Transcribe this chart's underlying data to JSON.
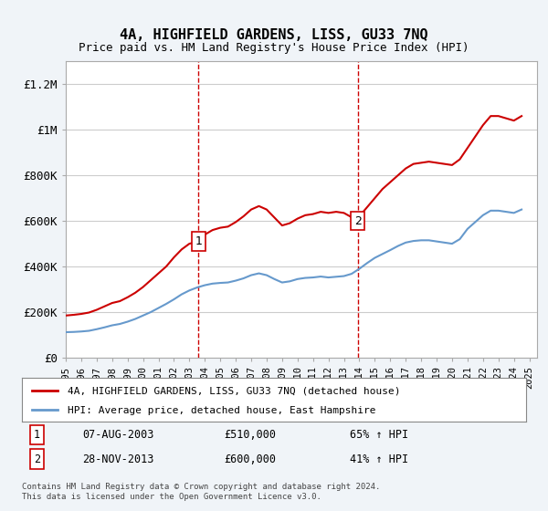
{
  "title": "4A, HIGHFIELD GARDENS, LISS, GU33 7NQ",
  "subtitle": "Price paid vs. HM Land Registry's House Price Index (HPI)",
  "ylabel_ticks": [
    "£0",
    "£200K",
    "£400K",
    "£600K",
    "£800K",
    "£1M",
    "£1.2M"
  ],
  "ytick_values": [
    0,
    200000,
    400000,
    600000,
    800000,
    1000000,
    1200000
  ],
  "ylim": [
    0,
    1300000
  ],
  "xlim_start": 1995.0,
  "xlim_end": 2025.5,
  "legend_line1": "4A, HIGHFIELD GARDENS, LISS, GU33 7NQ (detached house)",
  "legend_line2": "HPI: Average price, detached house, East Hampshire",
  "sale1_label": "1",
  "sale1_date": "07-AUG-2003",
  "sale1_price": "£510,000",
  "sale1_hpi": "65% ↑ HPI",
  "sale1_x": 2003.6,
  "sale1_y": 510000,
  "sale2_label": "2",
  "sale2_date": "28-NOV-2013",
  "sale2_price": "£600,000",
  "sale2_hpi": "41% ↑ HPI",
  "sale2_x": 2013.9,
  "sale2_y": 600000,
  "vline1_x": 2003.6,
  "vline2_x": 2013.9,
  "line_color_red": "#cc0000",
  "line_color_blue": "#6699cc",
  "vline_color": "#cc0000",
  "background_color": "#f0f4f8",
  "plot_bg_color": "#ffffff",
  "footer_text": "Contains HM Land Registry data © Crown copyright and database right 2024.\nThis data is licensed under the Open Government Licence v3.0.",
  "red_line_data_x": [
    1995.0,
    1995.5,
    1996.0,
    1996.5,
    1997.0,
    1997.5,
    1998.0,
    1998.5,
    1999.0,
    1999.5,
    2000.0,
    2000.5,
    2001.0,
    2001.5,
    2002.0,
    2002.5,
    2003.0,
    2003.58,
    2004.0,
    2004.5,
    2005.0,
    2005.5,
    2006.0,
    2006.5,
    2007.0,
    2007.5,
    2008.0,
    2008.5,
    2009.0,
    2009.5,
    2010.0,
    2010.5,
    2011.0,
    2011.5,
    2012.0,
    2012.5,
    2013.0,
    2013.92,
    2014.0,
    2014.5,
    2015.0,
    2015.5,
    2016.0,
    2016.5,
    2017.0,
    2017.5,
    2018.0,
    2018.5,
    2019.0,
    2019.5,
    2020.0,
    2020.5,
    2021.0,
    2021.5,
    2022.0,
    2022.5,
    2023.0,
    2023.5,
    2024.0,
    2024.5
  ],
  "red_line_data_y": [
    185000,
    188000,
    192000,
    198000,
    210000,
    225000,
    240000,
    248000,
    265000,
    285000,
    310000,
    340000,
    370000,
    400000,
    440000,
    475000,
    500000,
    510000,
    540000,
    560000,
    570000,
    575000,
    595000,
    620000,
    650000,
    665000,
    650000,
    615000,
    580000,
    590000,
    610000,
    625000,
    630000,
    640000,
    635000,
    640000,
    635000,
    600000,
    620000,
    660000,
    700000,
    740000,
    770000,
    800000,
    830000,
    850000,
    855000,
    860000,
    855000,
    850000,
    845000,
    870000,
    920000,
    970000,
    1020000,
    1060000,
    1060000,
    1050000,
    1040000,
    1060000
  ],
  "blue_line_data_x": [
    1995.0,
    1995.5,
    1996.0,
    1996.5,
    1997.0,
    1997.5,
    1998.0,
    1998.5,
    1999.0,
    1999.5,
    2000.0,
    2000.5,
    2001.0,
    2001.5,
    2002.0,
    2002.5,
    2003.0,
    2003.5,
    2004.0,
    2004.5,
    2005.0,
    2005.5,
    2006.0,
    2006.5,
    2007.0,
    2007.5,
    2008.0,
    2008.5,
    2009.0,
    2009.5,
    2010.0,
    2010.5,
    2011.0,
    2011.5,
    2012.0,
    2012.5,
    2013.0,
    2013.5,
    2014.0,
    2014.5,
    2015.0,
    2015.5,
    2016.0,
    2016.5,
    2017.0,
    2017.5,
    2018.0,
    2018.5,
    2019.0,
    2019.5,
    2020.0,
    2020.5,
    2021.0,
    2021.5,
    2022.0,
    2022.5,
    2023.0,
    2023.5,
    2024.0,
    2024.5
  ],
  "blue_line_data_y": [
    112000,
    113000,
    115000,
    118000,
    125000,
    133000,
    142000,
    148000,
    158000,
    170000,
    185000,
    200000,
    218000,
    236000,
    256000,
    278000,
    295000,
    308000,
    318000,
    325000,
    328000,
    330000,
    338000,
    348000,
    362000,
    370000,
    362000,
    345000,
    330000,
    335000,
    345000,
    350000,
    352000,
    356000,
    352000,
    355000,
    358000,
    368000,
    390000,
    415000,
    438000,
    455000,
    472000,
    490000,
    505000,
    512000,
    515000,
    515000,
    510000,
    505000,
    500000,
    520000,
    565000,
    595000,
    625000,
    645000,
    645000,
    640000,
    635000,
    650000
  ]
}
